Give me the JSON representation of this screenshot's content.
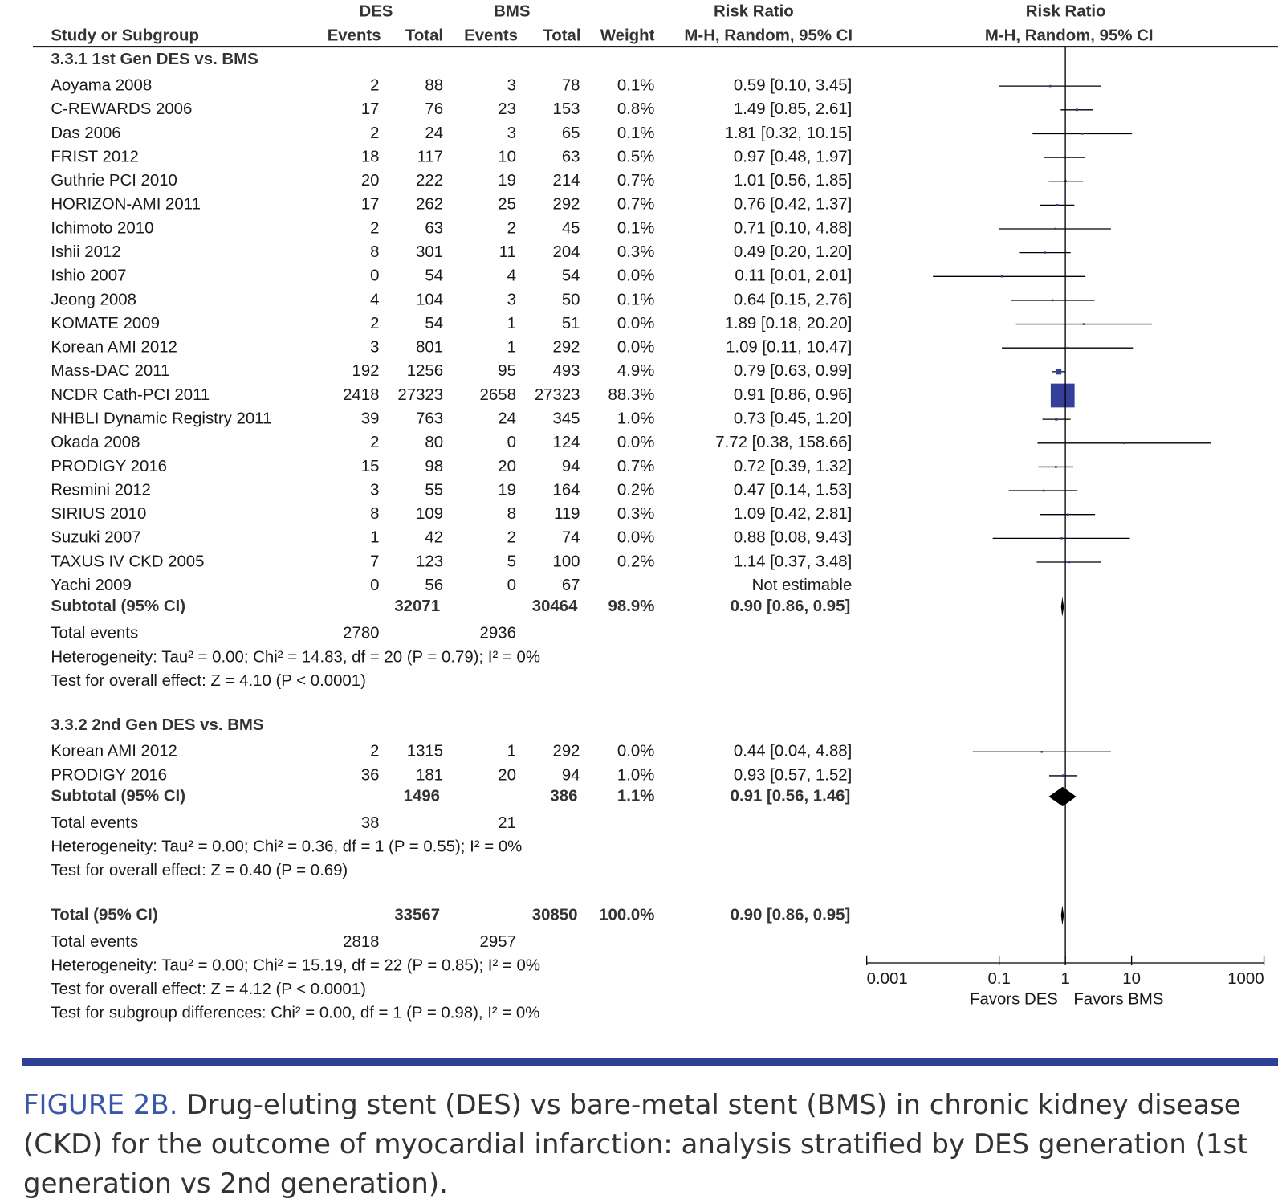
{
  "chart_data": {
    "type": "forest",
    "headers": {
      "des": "DES",
      "bms": "BMS",
      "rr_text": "Risk Ratio",
      "rr_plot": "Risk Ratio",
      "study": "Study or Subgroup",
      "des_events": "Events",
      "des_total": "Total",
      "bms_events": "Events",
      "bms_total": "Total",
      "weight": "Weight",
      "method_text": "M-H, Random, 95% CI",
      "method_plot": "M-H, Random, 95% CI"
    },
    "log_scale": true,
    "xlim": [
      0.001,
      1000
    ],
    "xticks": [
      0.001,
      0.1,
      1,
      10,
      1000
    ],
    "null_line": 1,
    "x_labels": [
      "Favors DES",
      "Favors BMS"
    ],
    "marker_color": "#333f99",
    "groups": [
      {
        "title": "3.3.1 1st Gen DES vs. BMS",
        "studies": [
          {
            "name": "Aoyama 2008",
            "des_events": 2,
            "des_total": 88,
            "bms_events": 3,
            "bms_total": 78,
            "weight": 0.1,
            "weight_label": "0.1%",
            "rr": 0.59,
            "ci": [
              0.1,
              3.45
            ],
            "rr_label": "0.59 [0.10, 3.45]"
          },
          {
            "name": "C-REWARDS 2006",
            "des_events": 17,
            "des_total": 76,
            "bms_events": 23,
            "bms_total": 153,
            "weight": 0.8,
            "weight_label": "0.8%",
            "rr": 1.49,
            "ci": [
              0.85,
              2.61
            ],
            "rr_label": "1.49 [0.85, 2.61]"
          },
          {
            "name": "Das 2006",
            "des_events": 2,
            "des_total": 24,
            "bms_events": 3,
            "bms_total": 65,
            "weight": 0.1,
            "weight_label": "0.1%",
            "rr": 1.81,
            "ci": [
              0.32,
              10.15
            ],
            "rr_label": "1.81 [0.32, 10.15]"
          },
          {
            "name": "FRIST 2012",
            "des_events": 18,
            "des_total": 117,
            "bms_events": 10,
            "bms_total": 63,
            "weight": 0.5,
            "weight_label": "0.5%",
            "rr": 0.97,
            "ci": [
              0.48,
              1.97
            ],
            "rr_label": "0.97 [0.48, 1.97]"
          },
          {
            "name": "Guthrie PCI 2010",
            "des_events": 20,
            "des_total": 222,
            "bms_events": 19,
            "bms_total": 214,
            "weight": 0.7,
            "weight_label": "0.7%",
            "rr": 1.01,
            "ci": [
              0.56,
              1.85
            ],
            "rr_label": "1.01 [0.56, 1.85]"
          },
          {
            "name": "HORIZON-AMI 2011",
            "des_events": 17,
            "des_total": 262,
            "bms_events": 25,
            "bms_total": 292,
            "weight": 0.7,
            "weight_label": "0.7%",
            "rr": 0.76,
            "ci": [
              0.42,
              1.37
            ],
            "rr_label": "0.76 [0.42, 1.37]"
          },
          {
            "name": "Ichimoto 2010",
            "des_events": 2,
            "des_total": 63,
            "bms_events": 2,
            "bms_total": 45,
            "weight": 0.1,
            "weight_label": "0.1%",
            "rr": 0.71,
            "ci": [
              0.1,
              4.88
            ],
            "rr_label": "0.71 [0.10, 4.88]"
          },
          {
            "name": "Ishii 2012",
            "des_events": 8,
            "des_total": 301,
            "bms_events": 11,
            "bms_total": 204,
            "weight": 0.3,
            "weight_label": "0.3%",
            "rr": 0.49,
            "ci": [
              0.2,
              1.2
            ],
            "rr_label": "0.49 [0.20, 1.20]"
          },
          {
            "name": "Ishio 2007",
            "des_events": 0,
            "des_total": 54,
            "bms_events": 4,
            "bms_total": 54,
            "weight": 0,
            "weight_label": "0.0%",
            "rr": 0.11,
            "ci": [
              0.01,
              2.01
            ],
            "rr_label": "0.11 [0.01, 2.01]"
          },
          {
            "name": "Jeong 2008",
            "des_events": 4,
            "des_total": 104,
            "bms_events": 3,
            "bms_total": 50,
            "weight": 0.1,
            "weight_label": "0.1%",
            "rr": 0.64,
            "ci": [
              0.15,
              2.76
            ],
            "rr_label": "0.64 [0.15, 2.76]"
          },
          {
            "name": "KOMATE 2009",
            "des_events": 2,
            "des_total": 54,
            "bms_events": 1,
            "bms_total": 51,
            "weight": 0,
            "weight_label": "0.0%",
            "rr": 1.89,
            "ci": [
              0.18,
              20.2
            ],
            "rr_label": "1.89 [0.18, 20.20]"
          },
          {
            "name": "Korean AMI 2012",
            "des_events": 3,
            "des_total": 801,
            "bms_events": 1,
            "bms_total": 292,
            "weight": 0,
            "weight_label": "0.0%",
            "rr": 1.09,
            "ci": [
              0.11,
              10.47
            ],
            "rr_label": "1.09 [0.11, 10.47]"
          },
          {
            "name": "Mass-DAC 2011",
            "des_events": 192,
            "des_total": 1256,
            "bms_events": 95,
            "bms_total": 493,
            "weight": 4.9,
            "weight_label": "4.9%",
            "rr": 0.79,
            "ci": [
              0.63,
              0.99
            ],
            "rr_label": "0.79 [0.63, 0.99]"
          },
          {
            "name": "NCDR Cath-PCI 2011",
            "des_events": 2418,
            "des_total": 27323,
            "bms_events": 2658,
            "bms_total": 27323,
            "weight": 88.3,
            "weight_label": "88.3%",
            "rr": 0.91,
            "ci": [
              0.86,
              0.96
            ],
            "rr_label": "0.91 [0.86, 0.96]"
          },
          {
            "name": "NHBLI Dynamic Registry 2011",
            "des_events": 39,
            "des_total": 763,
            "bms_events": 24,
            "bms_total": 345,
            "weight": 1.0,
            "weight_label": "1.0%",
            "rr": 0.73,
            "ci": [
              0.45,
              1.2
            ],
            "rr_label": "0.73 [0.45, 1.20]"
          },
          {
            "name": "Okada 2008",
            "des_events": 2,
            "des_total": 80,
            "bms_events": 0,
            "bms_total": 124,
            "weight": 0,
            "weight_label": "0.0%",
            "rr": 7.72,
            "ci": [
              0.38,
              158.66
            ],
            "rr_label": "7.72 [0.38, 158.66]"
          },
          {
            "name": "PRODIGY 2016",
            "des_events": 15,
            "des_total": 98,
            "bms_events": 20,
            "bms_total": 94,
            "weight": 0.7,
            "weight_label": "0.7%",
            "rr": 0.72,
            "ci": [
              0.39,
              1.32
            ],
            "rr_label": "0.72 [0.39, 1.32]"
          },
          {
            "name": "Resmini 2012",
            "des_events": 3,
            "des_total": 55,
            "bms_events": 19,
            "bms_total": 164,
            "weight": 0.2,
            "weight_label": "0.2%",
            "rr": 0.47,
            "ci": [
              0.14,
              1.53
            ],
            "rr_label": "0.47 [0.14, 1.53]"
          },
          {
            "name": "SIRIUS 2010",
            "des_events": 8,
            "des_total": 109,
            "bms_events": 8,
            "bms_total": 119,
            "weight": 0.3,
            "weight_label": "0.3%",
            "rr": 1.09,
            "ci": [
              0.42,
              2.81
            ],
            "rr_label": "1.09 [0.42, 2.81]"
          },
          {
            "name": "Suzuki 2007",
            "des_events": 1,
            "des_total": 42,
            "bms_events": 2,
            "bms_total": 74,
            "weight": 0,
            "weight_label": "0.0%",
            "rr": 0.88,
            "ci": [
              0.08,
              9.43
            ],
            "rr_label": "0.88 [0.08, 9.43]"
          },
          {
            "name": "TAXUS IV CKD 2005",
            "des_events": 7,
            "des_total": 123,
            "bms_events": 5,
            "bms_total": 100,
            "weight": 0.2,
            "weight_label": "0.2%",
            "rr": 1.14,
            "ci": [
              0.37,
              3.48
            ],
            "rr_label": "1.14 [0.37, 3.48]"
          },
          {
            "name": "Yachi 2009",
            "des_events": 0,
            "des_total": 56,
            "bms_events": 0,
            "bms_total": 67,
            "weight": null,
            "rr": null,
            "ci": null,
            "rr_label": "Not estimable"
          }
        ],
        "subtotal": {
          "name": "Subtotal (95% CI)",
          "des_total": 32071,
          "bms_total": 30464,
          "weight": 98.9,
          "weight_label": "98.9%",
          "rr": 0.9,
          "ci": [
            0.86,
            0.95
          ],
          "rr_label": "0.90 [0.86, 0.95]"
        },
        "total_events": {
          "label": "Total events",
          "des": 2780,
          "bms": 2936
        },
        "notes": [
          "Heterogeneity: Tau² = 0.00; Chi² = 14.83, df = 20 (P = 0.79); I² = 0%",
          "Test for overall effect: Z = 4.10 (P < 0.0001)"
        ]
      },
      {
        "title": "3.3.2 2nd Gen DES vs. BMS",
        "studies": [
          {
            "name": "Korean AMI 2012",
            "des_events": 2,
            "des_total": 1315,
            "bms_events": 1,
            "bms_total": 292,
            "weight": 0,
            "weight_label": "0.0%",
            "rr": 0.44,
            "ci": [
              0.04,
              4.88
            ],
            "rr_label": "0.44 [0.04, 4.88]"
          },
          {
            "name": "PRODIGY 2016",
            "des_events": 36,
            "des_total": 181,
            "bms_events": 20,
            "bms_total": 94,
            "weight": 1.0,
            "weight_label": "1.0%",
            "rr": 0.93,
            "ci": [
              0.57,
              1.52
            ],
            "rr_label": "0.93 [0.57, 1.52]"
          }
        ],
        "subtotal": {
          "name": "Subtotal (95% CI)",
          "des_total": 1496,
          "bms_total": 386,
          "weight": 1.1,
          "weight_label": "1.1%",
          "rr": 0.91,
          "ci": [
            0.56,
            1.46
          ],
          "rr_label": "0.91 [0.56, 1.46]"
        },
        "total_events": {
          "label": "Total events",
          "des": 38,
          "bms": 21
        },
        "notes": [
          "Heterogeneity: Tau² = 0.00; Chi² = 0.36, df = 1 (P = 0.55); I² = 0%",
          "Test for overall effect: Z = 0.40 (P = 0.69)"
        ]
      }
    ],
    "total": {
      "name": "Total (95% CI)",
      "des_total": 33567,
      "bms_total": 30850,
      "weight": 100.0,
      "weight_label": "100.0%",
      "rr": 0.9,
      "ci": [
        0.86,
        0.95
      ],
      "rr_label": "0.90 [0.86, 0.95]"
    },
    "total_events": {
      "label": "Total events",
      "des": 2818,
      "bms": 2957
    },
    "notes": [
      "Heterogeneity: Tau² = 0.00; Chi² = 15.19, df = 22 (P = 0.85); I² = 0%",
      "Test for overall effect: Z = 4.12 (P < 0.0001)",
      "Test for subgroup differences: Chi² = 0.00, df = 1 (P = 0.98), I² = 0%"
    ]
  },
  "caption": {
    "label": "FIGURE 2B.",
    "text": "Drug-eluting stent (DES) vs bare-metal stent (BMS) in chronic kidney disease (CKD) for the outcome of myocardial infarction: analysis stratified by DES generation (1st generation vs 2nd generation)."
  }
}
